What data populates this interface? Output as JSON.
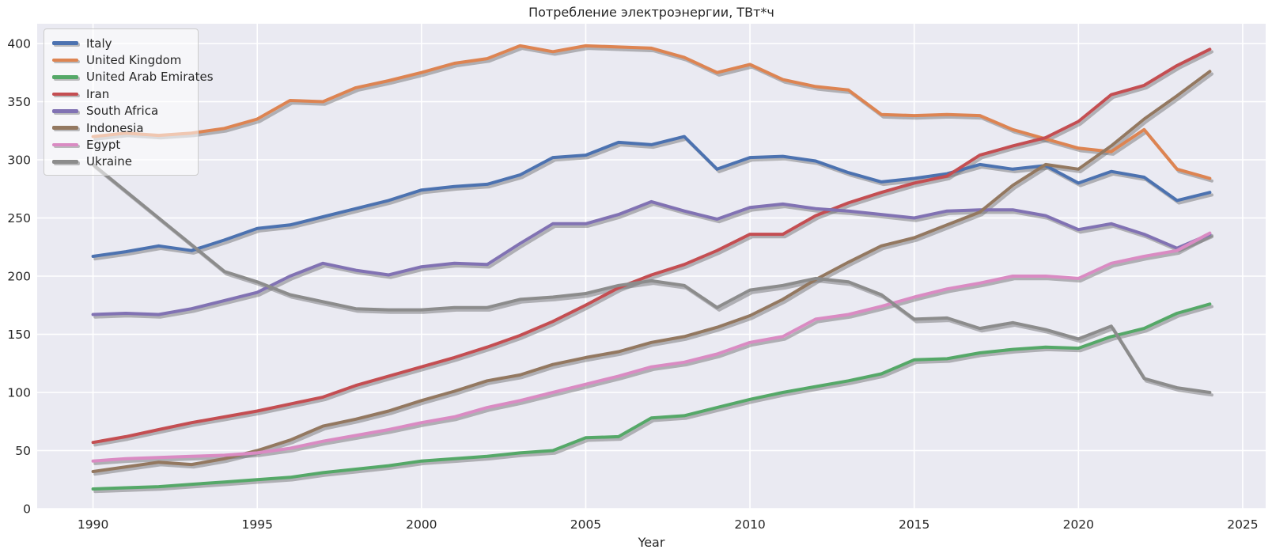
{
  "title": "Потребление электроэнергии, ТВт*ч",
  "xlabel": "Year",
  "chart_data": {
    "type": "line",
    "title": "Потребление электроэнергии, ТВт*ч",
    "xlabel": "Year",
    "ylabel": "",
    "grid": true,
    "legend_position": "upper-left",
    "plot_background": "#eaeaf2",
    "grid_color": "#ffffff",
    "x_ticks": [
      1990,
      1995,
      2000,
      2005,
      2010,
      2015,
      2020,
      2025
    ],
    "y_ticks": [
      0,
      50,
      100,
      150,
      200,
      250,
      300,
      350,
      400
    ],
    "xlim": [
      1988.3,
      2025.7
    ],
    "ylim": [
      0,
      417
    ],
    "x": [
      1990,
      1991,
      1992,
      1993,
      1994,
      1995,
      1996,
      1997,
      1998,
      1999,
      2000,
      2001,
      2002,
      2003,
      2004,
      2005,
      2006,
      2007,
      2008,
      2009,
      2010,
      2011,
      2012,
      2013,
      2014,
      2015,
      2016,
      2017,
      2018,
      2019,
      2020,
      2021,
      2022,
      2023,
      2024
    ],
    "series": [
      {
        "name": "Italy",
        "color": "#4c72b0",
        "values": [
          217,
          221,
          226,
          222,
          231,
          241,
          244,
          251,
          258,
          265,
          274,
          277,
          279,
          287,
          302,
          304,
          315,
          313,
          320,
          292,
          302,
          303,
          299,
          289,
          281,
          284,
          288,
          296,
          292,
          295,
          280,
          290,
          285,
          265,
          272
        ]
      },
      {
        "name": "United Kingdom",
        "color": "#dd8452",
        "values": [
          320,
          323,
          321,
          323,
          327,
          335,
          351,
          350,
          362,
          368,
          375,
          383,
          387,
          398,
          393,
          398,
          397,
          396,
          388,
          375,
          382,
          369,
          363,
          360,
          339,
          338,
          339,
          338,
          326,
          318,
          310,
          307,
          326,
          292,
          284
        ]
      },
      {
        "name": "United Arab Emirates",
        "color": "#55a868",
        "values": [
          17,
          18,
          19,
          21,
          23,
          25,
          27,
          31,
          34,
          37,
          41,
          43,
          45,
          48,
          50,
          61,
          62,
          78,
          80,
          87,
          94,
          100,
          105,
          110,
          116,
          128,
          129,
          134,
          137,
          139,
          138,
          148,
          155,
          168,
          176
        ]
      },
      {
        "name": "Iran",
        "color": "#c44e52",
        "values": [
          57,
          62,
          68,
          74,
          79,
          84,
          90,
          96,
          106,
          114,
          122,
          130,
          139,
          149,
          161,
          175,
          190,
          201,
          210,
          222,
          236,
          236,
          252,
          263,
          272,
          280,
          286,
          304,
          312,
          319,
          333,
          356,
          364,
          381,
          395
        ]
      },
      {
        "name": "South Africa",
        "color": "#8172b3",
        "values": [
          167,
          168,
          167,
          172,
          179,
          186,
          200,
          211,
          205,
          201,
          208,
          211,
          210,
          228,
          245,
          245,
          253,
          264,
          256,
          249,
          259,
          262,
          258,
          256,
          253,
          250,
          256,
          257,
          257,
          252,
          240,
          245,
          236,
          224,
          236
        ]
      },
      {
        "name": "Indonesia",
        "color": "#937860",
        "values": [
          32,
          36,
          40,
          38,
          43,
          50,
          59,
          71,
          77,
          84,
          93,
          101,
          110,
          115,
          124,
          130,
          135,
          143,
          148,
          156,
          166,
          180,
          197,
          212,
          226,
          233,
          244,
          255,
          278,
          296,
          292,
          312,
          335,
          355,
          376
        ]
      },
      {
        "name": "Egypt",
        "color": "#da8bc3",
        "values": [
          41,
          43,
          44,
          45,
          46,
          48,
          52,
          58,
          63,
          68,
          74,
          79,
          87,
          93,
          100,
          107,
          114,
          122,
          126,
          133,
          143,
          148,
          163,
          167,
          174,
          182,
          189,
          194,
          200,
          200,
          198,
          211,
          217,
          222,
          237
        ]
      },
      {
        "name": "Ukraine",
        "color": "#8c8c8c",
        "values": [
          296,
          273,
          250,
          227,
          204,
          195,
          184,
          178,
          172,
          171,
          171,
          173,
          173,
          180,
          182,
          185,
          192,
          196,
          192,
          173,
          188,
          192,
          198,
          195,
          184,
          163,
          164,
          155,
          160,
          154,
          146,
          157,
          112,
          104,
          100
        ]
      }
    ]
  }
}
